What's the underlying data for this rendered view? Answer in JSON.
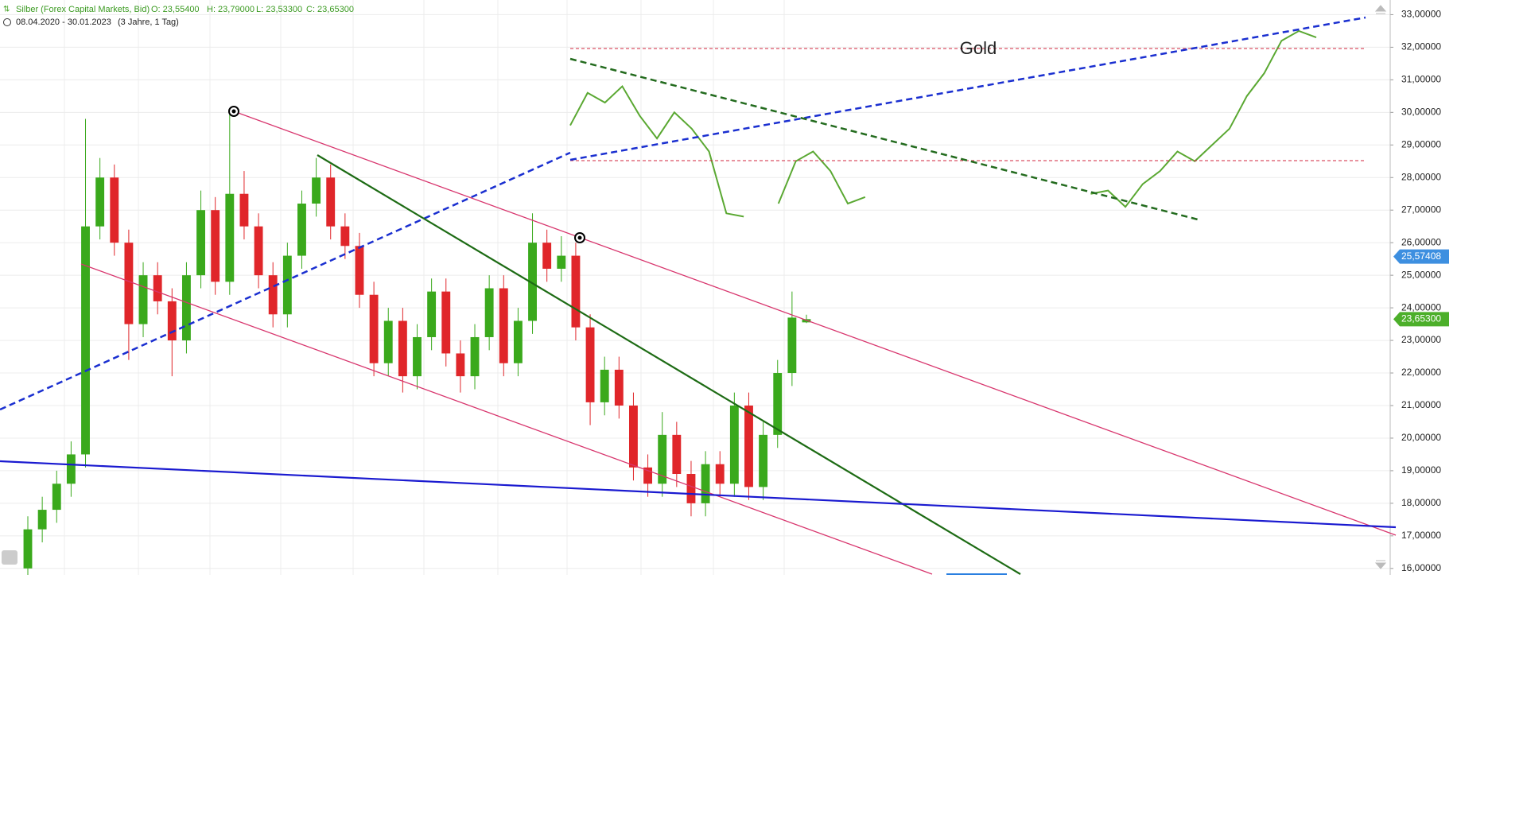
{
  "chart_data": {
    "type": "candlestick",
    "instrument": "Silber (Forex Capital Markets, Bid)",
    "ohlc_labels": [
      "O: 23,55400",
      "H: 23,79000",
      "L: 23,53300",
      "C: 23,65300"
    ],
    "range": "08.04.2020 - 30.01.2023",
    "period": "(3 Jahre, 1 Tag)",
    "annotation": "Gold",
    "up_color": "#3aa91c",
    "down_color": "#e0262a",
    "open": [
      16.0,
      17.2,
      17.8,
      18.6,
      19.5,
      26.5,
      28.0,
      26.0,
      23.5,
      25.0,
      24.2,
      23.0,
      25.0,
      27.0,
      24.8,
      27.5,
      26.5,
      25.0,
      23.8,
      25.6,
      27.2,
      28.0,
      26.5,
      25.9,
      24.4,
      22.3,
      23.6,
      21.9,
      23.1,
      24.5,
      22.6,
      21.9,
      23.1,
      24.6,
      22.3,
      23.6,
      26.0,
      25.2,
      25.6,
      23.4,
      21.1,
      22.1,
      21.0,
      19.1,
      18.6,
      20.1,
      18.9,
      18.0,
      19.2,
      18.6,
      21.0,
      18.5,
      20.1,
      22.0,
      23.554
    ],
    "high": [
      17.6,
      18.2,
      19.0,
      19.9,
      29.8,
      28.6,
      28.4,
      26.4,
      25.4,
      25.4,
      24.6,
      25.4,
      27.6,
      27.4,
      30.0,
      28.2,
      26.9,
      25.4,
      26.0,
      27.6,
      28.6,
      28.4,
      26.9,
      26.3,
      24.8,
      24.0,
      24.0,
      23.5,
      24.9,
      24.9,
      23.0,
      23.5,
      25.0,
      25.0,
      24.0,
      26.9,
      26.4,
      26.2,
      26.0,
      23.8,
      22.5,
      22.5,
      21.4,
      19.5,
      20.8,
      20.5,
      19.3,
      19.6,
      19.6,
      21.4,
      21.4,
      20.5,
      22.4,
      24.5,
      23.79
    ],
    "low": [
      15.8,
      16.8,
      17.4,
      18.2,
      19.1,
      26.1,
      25.6,
      22.4,
      23.1,
      23.8,
      21.9,
      22.6,
      24.6,
      24.4,
      24.4,
      26.1,
      24.6,
      23.4,
      23.4,
      25.2,
      26.8,
      26.1,
      25.5,
      24.0,
      21.9,
      21.9,
      21.4,
      21.5,
      22.7,
      22.2,
      21.4,
      21.5,
      22.7,
      21.9,
      21.9,
      23.2,
      24.8,
      24.8,
      23.0,
      20.4,
      20.7,
      20.6,
      18.7,
      18.2,
      18.2,
      18.5,
      17.6,
      17.6,
      18.2,
      18.2,
      18.1,
      18.1,
      19.7,
      21.6,
      23.533
    ],
    "close": [
      17.2,
      17.8,
      18.6,
      19.5,
      26.5,
      28.0,
      26.0,
      23.5,
      25.0,
      24.2,
      23.0,
      25.0,
      27.0,
      24.8,
      27.5,
      26.5,
      25.0,
      23.8,
      25.6,
      27.2,
      28.0,
      26.5,
      25.9,
      24.4,
      22.3,
      23.6,
      21.9,
      23.1,
      24.5,
      22.6,
      21.9,
      23.1,
      24.6,
      22.3,
      23.6,
      26.0,
      25.2,
      25.6,
      23.4,
      21.1,
      22.1,
      21.0,
      19.1,
      18.6,
      20.1,
      18.9,
      18.0,
      19.2,
      18.6,
      21.0,
      18.5,
      20.1,
      22.0,
      23.7,
      23.653
    ],
    "overlay": {
      "name": "Gold",
      "color": "#5aa832",
      "values": [
        29.6,
        30.6,
        30.3,
        30.8,
        29.9,
        29.2,
        30.0,
        29.5,
        28.8,
        26.9,
        26.8,
        null,
        27.2,
        28.5,
        28.8,
        28.2,
        27.2,
        27.4,
        null,
        null,
        null,
        null,
        null,
        null,
        null,
        null,
        null,
        null,
        null,
        null,
        27.5,
        27.6,
        27.1,
        27.8,
        28.2,
        28.8,
        28.5,
        29.0,
        29.5,
        30.5,
        31.2,
        32.2,
        32.5,
        32.3
      ]
    },
    "price_markers": [
      {
        "value": 25.57408,
        "label": "25,57408",
        "color": "#3d8fe0"
      },
      {
        "value": 23.653,
        "label": "23,65300",
        "color": "#4caf2a"
      }
    ],
    "ylim": [
      15.8,
      33.45
    ],
    "yticks": [
      {
        "value": 16,
        "label": "16,00000"
      },
      {
        "value": 17,
        "label": "17,00000"
      },
      {
        "value": 18,
        "label": "18,00000"
      },
      {
        "value": 19,
        "label": "19,00000"
      },
      {
        "value": 20,
        "label": "20,00000"
      },
      {
        "value": 21,
        "label": "21,00000"
      },
      {
        "value": 22,
        "label": "22,00000"
      },
      {
        "value": 23,
        "label": "23,00000"
      },
      {
        "value": 24,
        "label": "24,00000"
      },
      {
        "value": 25,
        "label": "25,00000"
      },
      {
        "value": 26,
        "label": "26,00000"
      },
      {
        "value": 27,
        "label": "27,00000"
      },
      {
        "value": 28,
        "label": "28,00000"
      },
      {
        "value": 29,
        "label": "29,00000"
      },
      {
        "value": 30,
        "label": "30,00000"
      },
      {
        "value": 31,
        "label": "31,00000"
      },
      {
        "value": 32,
        "label": "32,00000"
      },
      {
        "value": 33,
        "label": "33,00000"
      }
    ],
    "grid": true
  }
}
